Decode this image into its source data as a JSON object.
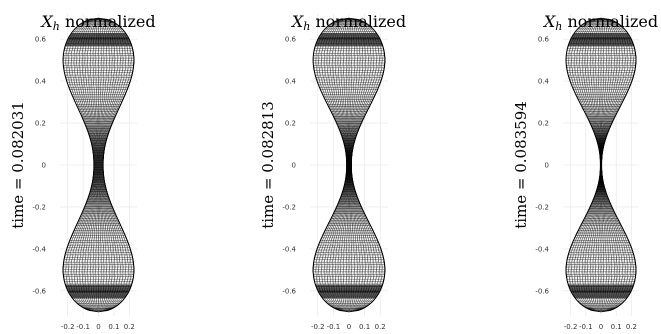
{
  "chart_data": [
    {
      "type": "mesh",
      "title": "X_h normalized",
      "ylabel": "time = 0.082031",
      "xlim": [
        -0.25,
        0.25
      ],
      "ylim": [
        -0.72,
        0.72
      ],
      "xticks": [
        "-0.2",
        "-0.1",
        "0",
        "0.1",
        "0.2"
      ],
      "yticks": [
        "0.6",
        "0.4",
        "0.2",
        "0",
        "-0.2",
        "-0.4",
        "-0.6"
      ],
      "neck_halfwidth": 0.03,
      "bulb_halfwidth": 0.23
    },
    {
      "type": "mesh",
      "title": "X_h normalized",
      "ylabel": "time = 0.082813",
      "xlim": [
        -0.25,
        0.25
      ],
      "ylim": [
        -0.72,
        0.72
      ],
      "xticks": [
        "-0.2",
        "-0.1",
        "0",
        "0.1",
        "0.2"
      ],
      "yticks": [
        "0.6",
        "0.4",
        "0.2",
        "0",
        "-0.2",
        "-0.4",
        "-0.6"
      ],
      "neck_halfwidth": 0.015,
      "bulb_halfwidth": 0.23
    },
    {
      "type": "mesh",
      "title": "X_h normalized",
      "ylabel": "time = 0.083594",
      "xlim": [
        -0.25,
        0.25
      ],
      "ylim": [
        -0.72,
        0.72
      ],
      "xticks": [
        "-0.2",
        "-0.1",
        "0",
        "0.1",
        "0.2"
      ],
      "yticks": [
        "0.6",
        "0.4",
        "0.2",
        "0",
        "-0.2",
        "-0.4",
        "-0.6"
      ],
      "neck_halfwidth": 0.004,
      "bulb_halfwidth": 0.23
    }
  ]
}
